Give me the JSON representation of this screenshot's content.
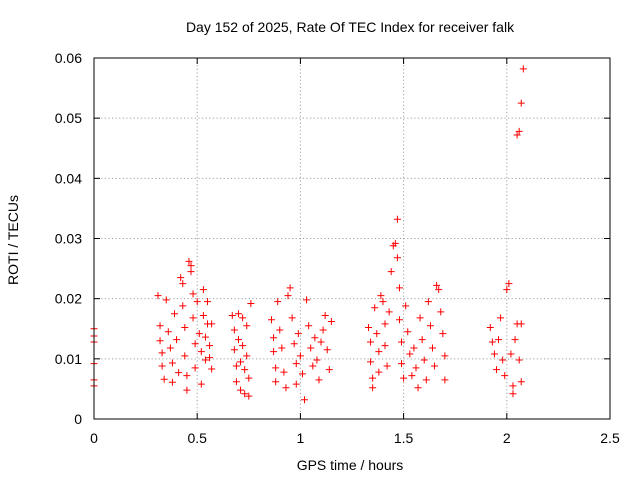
{
  "chart_data": {
    "type": "scatter",
    "title": "Day 152 of 2025, Rate Of TEC Index for receiver falk",
    "xlabel": "GPS time / hours",
    "ylabel": "ROTI / TECUs",
    "xlim": [
      0,
      2.5
    ],
    "ylim": [
      0,
      0.06
    ],
    "grid": true,
    "marker": "+",
    "color": "#ff0000",
    "x_ticks": [
      0,
      0.5,
      1,
      1.5,
      2,
      2.5
    ],
    "x_tick_labels": [
      "0",
      "0.5",
      "1",
      "1.5",
      "2",
      "2.5"
    ],
    "y_ticks": [
      0,
      0.01,
      0.02,
      0.03,
      0.04,
      0.05,
      0.06
    ],
    "y_tick_labels": [
      "0",
      "0.01",
      "0.02",
      "0.03",
      "0.04",
      "0.05",
      "0.06"
    ],
    "series": [
      {
        "name": "ROTI",
        "points": [
          [
            0.0,
            0.015
          ],
          [
            0.0,
            0.0138
          ],
          [
            0.0,
            0.0128
          ],
          [
            0.0,
            0.0092
          ],
          [
            0.0,
            0.0065
          ],
          [
            0.0,
            0.0055
          ],
          [
            0.31,
            0.0205
          ],
          [
            0.32,
            0.0155
          ],
          [
            0.32,
            0.013
          ],
          [
            0.33,
            0.011
          ],
          [
            0.33,
            0.0088
          ],
          [
            0.34,
            0.0066
          ],
          [
            0.35,
            0.0198
          ],
          [
            0.36,
            0.0145
          ],
          [
            0.37,
            0.0118
          ],
          [
            0.38,
            0.0093
          ],
          [
            0.38,
            0.0061
          ],
          [
            0.39,
            0.0175
          ],
          [
            0.4,
            0.0132
          ],
          [
            0.41,
            0.0077
          ],
          [
            0.42,
            0.0235
          ],
          [
            0.43,
            0.0225
          ],
          [
            0.43,
            0.0188
          ],
          [
            0.44,
            0.0152
          ],
          [
            0.44,
            0.0105
          ],
          [
            0.45,
            0.0072
          ],
          [
            0.45,
            0.0048
          ],
          [
            0.46,
            0.0262
          ],
          [
            0.47,
            0.0255
          ],
          [
            0.47,
            0.0245
          ],
          [
            0.48,
            0.0208
          ],
          [
            0.48,
            0.0168
          ],
          [
            0.49,
            0.0125
          ],
          [
            0.49,
            0.0085
          ],
          [
            0.5,
            0.0195
          ],
          [
            0.51,
            0.0142
          ],
          [
            0.52,
            0.0112
          ],
          [
            0.52,
            0.0058
          ],
          [
            0.53,
            0.0215
          ],
          [
            0.53,
            0.0172
          ],
          [
            0.54,
            0.0136
          ],
          [
            0.54,
            0.0098
          ],
          [
            0.55,
            0.0195
          ],
          [
            0.55,
            0.0158
          ],
          [
            0.56,
            0.0122
          ],
          [
            0.56,
            0.0102
          ],
          [
            0.57,
            0.0158
          ],
          [
            0.57,
            0.0083
          ],
          [
            0.67,
            0.0172
          ],
          [
            0.68,
            0.0148
          ],
          [
            0.68,
            0.0115
          ],
          [
            0.69,
            0.0088
          ],
          [
            0.69,
            0.0062
          ],
          [
            0.7,
            0.0175
          ],
          [
            0.7,
            0.0132
          ],
          [
            0.71,
            0.0095
          ],
          [
            0.71,
            0.0048
          ],
          [
            0.72,
            0.0168
          ],
          [
            0.72,
            0.0122
          ],
          [
            0.73,
            0.0082
          ],
          [
            0.73,
            0.0042
          ],
          [
            0.74,
            0.0155
          ],
          [
            0.74,
            0.0105
          ],
          [
            0.75,
            0.0068
          ],
          [
            0.75,
            0.0038
          ],
          [
            0.76,
            0.0192
          ],
          [
            0.86,
            0.0165
          ],
          [
            0.87,
            0.0135
          ],
          [
            0.87,
            0.0112
          ],
          [
            0.88,
            0.0085
          ],
          [
            0.88,
            0.0062
          ],
          [
            0.89,
            0.0195
          ],
          [
            0.9,
            0.0148
          ],
          [
            0.91,
            0.0118
          ],
          [
            0.92,
            0.0078
          ],
          [
            0.93,
            0.0052
          ],
          [
            0.94,
            0.0205
          ],
          [
            0.95,
            0.0218
          ],
          [
            0.96,
            0.0168
          ],
          [
            0.97,
            0.0125
          ],
          [
            0.98,
            0.0092
          ],
          [
            0.98,
            0.0058
          ],
          [
            0.99,
            0.0142
          ],
          [
            1.0,
            0.0105
          ],
          [
            1.01,
            0.0075
          ],
          [
            1.02,
            0.0032
          ],
          [
            1.03,
            0.0198
          ],
          [
            1.04,
            0.0155
          ],
          [
            1.05,
            0.0118
          ],
          [
            1.06,
            0.0088
          ],
          [
            1.07,
            0.0135
          ],
          [
            1.08,
            0.0098
          ],
          [
            1.09,
            0.0065
          ],
          [
            1.1,
            0.0128
          ],
          [
            1.11,
            0.0148
          ],
          [
            1.12,
            0.0172
          ],
          [
            1.13,
            0.0115
          ],
          [
            1.14,
            0.0082
          ],
          [
            1.15,
            0.0162
          ],
          [
            1.33,
            0.0152
          ],
          [
            1.34,
            0.0128
          ],
          [
            1.34,
            0.0095
          ],
          [
            1.35,
            0.0068
          ],
          [
            1.35,
            0.0052
          ],
          [
            1.36,
            0.0185
          ],
          [
            1.37,
            0.0142
          ],
          [
            1.38,
            0.0112
          ],
          [
            1.38,
            0.0078
          ],
          [
            1.39,
            0.0205
          ],
          [
            1.4,
            0.0195
          ],
          [
            1.41,
            0.0158
          ],
          [
            1.41,
            0.0122
          ],
          [
            1.42,
            0.0088
          ],
          [
            1.43,
            0.0178
          ],
          [
            1.44,
            0.0245
          ],
          [
            1.45,
            0.0288
          ],
          [
            1.46,
            0.0292
          ],
          [
            1.47,
            0.0332
          ],
          [
            1.47,
            0.0268
          ],
          [
            1.48,
            0.0218
          ],
          [
            1.48,
            0.0165
          ],
          [
            1.49,
            0.0128
          ],
          [
            1.49,
            0.0092
          ],
          [
            1.5,
            0.0068
          ],
          [
            1.51,
            0.0188
          ],
          [
            1.52,
            0.0145
          ],
          [
            1.53,
            0.0108
          ],
          [
            1.54,
            0.0072
          ],
          [
            1.55,
            0.0118
          ],
          [
            1.56,
            0.0085
          ],
          [
            1.57,
            0.0052
          ],
          [
            1.58,
            0.0168
          ],
          [
            1.59,
            0.0132
          ],
          [
            1.6,
            0.0098
          ],
          [
            1.61,
            0.0065
          ],
          [
            1.62,
            0.0195
          ],
          [
            1.63,
            0.0155
          ],
          [
            1.64,
            0.0118
          ],
          [
            1.65,
            0.0088
          ],
          [
            1.66,
            0.0222
          ],
          [
            1.67,
            0.0215
          ],
          [
            1.68,
            0.0178
          ],
          [
            1.69,
            0.0142
          ],
          [
            1.7,
            0.0105
          ],
          [
            1.7,
            0.0065
          ],
          [
            1.92,
            0.0152
          ],
          [
            1.93,
            0.0128
          ],
          [
            1.94,
            0.0108
          ],
          [
            1.95,
            0.0082
          ],
          [
            1.96,
            0.0132
          ],
          [
            1.97,
            0.0168
          ],
          [
            1.98,
            0.0098
          ],
          [
            1.99,
            0.0072
          ],
          [
            2.0,
            0.0215
          ],
          [
            2.01,
            0.0225
          ],
          [
            2.02,
            0.0108
          ],
          [
            2.03,
            0.0055
          ],
          [
            2.03,
            0.0042
          ],
          [
            2.04,
            0.0132
          ],
          [
            2.05,
            0.0158
          ],
          [
            2.05,
            0.0472
          ],
          [
            2.06,
            0.0478
          ],
          [
            2.06,
            0.0098
          ],
          [
            2.07,
            0.0525
          ],
          [
            2.07,
            0.0158
          ],
          [
            2.07,
            0.0062
          ],
          [
            2.08,
            0.0582
          ]
        ]
      }
    ]
  }
}
